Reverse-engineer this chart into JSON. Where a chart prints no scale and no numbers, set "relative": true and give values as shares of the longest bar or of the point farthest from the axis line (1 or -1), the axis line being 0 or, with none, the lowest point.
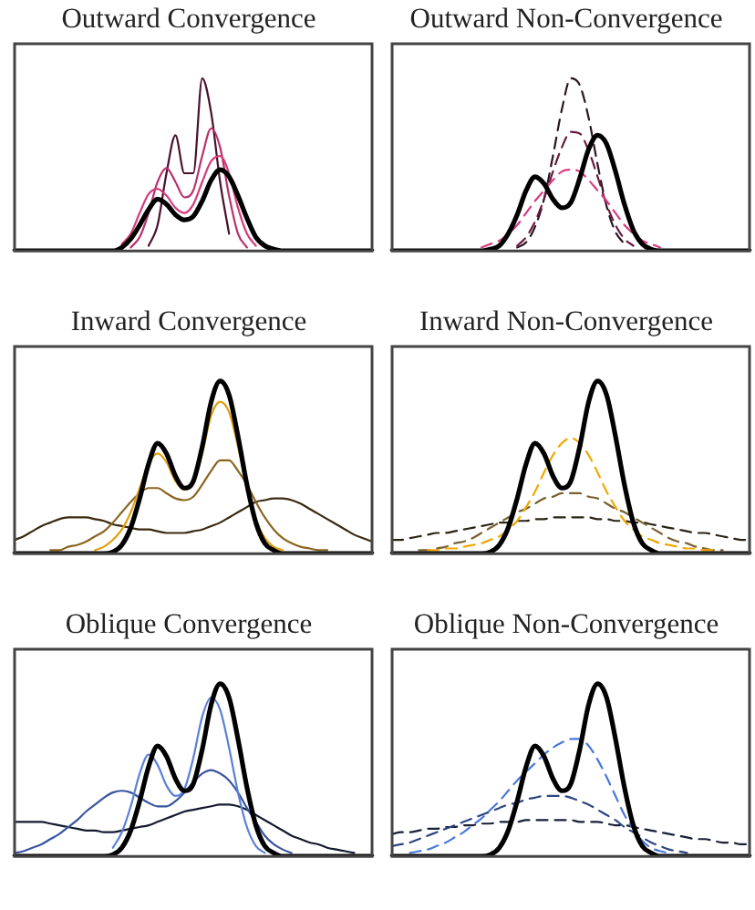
{
  "chart_data": [
    {
      "type": "line",
      "title": "Outward Convergence",
      "relative": true,
      "categories": [
        null,
        null,
        null,
        null,
        null,
        null,
        null,
        null,
        null,
        null,
        null,
        null,
        null,
        null,
        null,
        null,
        null,
        null,
        null,
        null,
        null,
        null,
        null,
        null,
        null,
        null,
        null,
        null,
        null,
        null,
        null,
        null,
        null,
        null,
        null,
        null,
        null,
        null,
        null,
        null,
        null
      ],
      "series": [
        {
          "color": "#000000",
          "values": [
            0,
            0,
            0,
            0,
            0,
            0,
            0,
            0,
            0,
            0,
            0,
            0,
            0.02,
            0.07,
            0.15,
            0.24,
            0.3,
            0.27,
            0.21,
            0.18,
            0.2,
            0.29,
            0.41,
            0.47,
            0.43,
            0.32,
            0.19,
            0.08,
            0.03,
            0.01,
            0,
            0,
            0,
            0,
            0,
            0,
            0,
            0,
            0,
            0,
            0
          ]
        },
        {
          "color": "#4a1030",
          "values": [
            null,
            null,
            null,
            null,
            null,
            null,
            null,
            null,
            null,
            null,
            null,
            null,
            null,
            null,
            null,
            0.03,
            0.15,
            0.45,
            0.67,
            0.45,
            0.45,
            1.0,
            0.8,
            0.4,
            0.1,
            null,
            null,
            null,
            null,
            null,
            null,
            null,
            null,
            null,
            null,
            null,
            null,
            null,
            null,
            null,
            null
          ]
        },
        {
          "color": "#b8306e",
          "values": [
            null,
            null,
            null,
            null,
            null,
            null,
            null,
            null,
            null,
            null,
            null,
            null,
            null,
            0.02,
            0.08,
            0.22,
            0.4,
            0.48,
            0.4,
            0.31,
            0.35,
            0.55,
            0.71,
            0.6,
            0.32,
            0.1,
            0.02,
            null,
            null,
            null,
            null,
            null,
            null,
            null,
            null,
            null,
            null,
            null,
            null,
            null,
            null
          ]
        },
        {
          "color": "#d63a7c",
          "values": [
            null,
            null,
            null,
            null,
            null,
            null,
            null,
            null,
            null,
            null,
            null,
            null,
            0.04,
            0.1,
            0.22,
            0.33,
            0.36,
            0.32,
            0.25,
            0.22,
            0.27,
            0.4,
            0.52,
            0.55,
            0.45,
            0.25,
            0.1,
            0.03,
            null,
            null,
            null,
            null,
            null,
            null,
            null,
            null,
            null,
            null,
            null,
            null,
            null
          ]
        }
      ]
    },
    {
      "type": "line",
      "title": "Outward Non-Convergence",
      "relative": true,
      "categories": [
        null,
        null,
        null,
        null,
        null,
        null,
        null,
        null,
        null,
        null,
        null,
        null,
        null,
        null,
        null,
        null,
        null,
        null,
        null,
        null,
        null,
        null,
        null,
        null,
        null,
        null,
        null,
        null,
        null,
        null,
        null,
        null,
        null,
        null,
        null,
        null,
        null,
        null,
        null,
        null,
        null
      ],
      "series": [
        {
          "color": "#000000",
          "values": [
            0,
            0,
            0,
            0,
            0,
            0,
            0,
            0,
            0,
            0,
            0,
            0.01,
            0.03,
            0.1,
            0.21,
            0.35,
            0.43,
            0.39,
            0.3,
            0.25,
            0.28,
            0.42,
            0.59,
            0.67,
            0.62,
            0.46,
            0.27,
            0.12,
            0.04,
            0.01,
            0,
            0,
            0,
            0,
            0,
            0,
            0,
            0,
            0,
            0,
            0
          ]
        },
        {
          "color": "#2a1520",
          "line_style": "dashed",
          "values": [
            null,
            null,
            null,
            null,
            null,
            null,
            null,
            null,
            null,
            null,
            null,
            null,
            null,
            null,
            0.02,
            0.05,
            0.14,
            0.3,
            0.55,
            0.82,
            1.0,
            0.96,
            0.77,
            0.5,
            0.26,
            0.11,
            0.04,
            null,
            null,
            null,
            null,
            null,
            null,
            null,
            null,
            null,
            null,
            null,
            null,
            null,
            null
          ]
        },
        {
          "color": "#6a1a40",
          "line_style": "dashed",
          "values": [
            null,
            null,
            null,
            null,
            null,
            null,
            null,
            null,
            null,
            null,
            null,
            null,
            null,
            null,
            0.03,
            0.08,
            0.17,
            0.3,
            0.46,
            0.6,
            0.69,
            0.68,
            0.58,
            0.43,
            0.27,
            0.15,
            0.07,
            0.03,
            null,
            null,
            null,
            null,
            null,
            null,
            null,
            null,
            null,
            null,
            null,
            null,
            null
          ]
        },
        {
          "color": "#d83a80",
          "line_style": "dashed",
          "values": [
            null,
            null,
            null,
            null,
            null,
            null,
            null,
            null,
            null,
            null,
            0.02,
            0.04,
            0.06,
            0.1,
            0.15,
            0.22,
            0.29,
            0.35,
            0.41,
            0.46,
            0.47,
            0.46,
            0.41,
            0.35,
            0.29,
            0.22,
            0.15,
            0.1,
            0.06,
            0.04,
            0.02,
            null,
            null,
            null,
            null,
            null,
            null,
            null,
            null,
            null,
            null
          ]
        }
      ]
    },
    {
      "type": "line",
      "title": "Inward Convergence",
      "relative": true,
      "categories": [
        null,
        null,
        null,
        null,
        null,
        null,
        null,
        null,
        null,
        null,
        null,
        null,
        null,
        null,
        null,
        null,
        null,
        null,
        null,
        null,
        null,
        null,
        null,
        null,
        null,
        null,
        null,
        null,
        null,
        null,
        null,
        null,
        null,
        null,
        null,
        null,
        null,
        null,
        null,
        null,
        null
      ],
      "series": [
        {
          "color": "#000000",
          "values": [
            0,
            0,
            0,
            0,
            0,
            0,
            0,
            0,
            0,
            0,
            0,
            0.01,
            0.05,
            0.15,
            0.32,
            0.52,
            0.64,
            0.58,
            0.45,
            0.38,
            0.42,
            0.62,
            0.88,
            1.0,
            0.92,
            0.68,
            0.4,
            0.18,
            0.06,
            0.02,
            0,
            0,
            0,
            0,
            0,
            0,
            0,
            0,
            0,
            0,
            0
          ]
        },
        {
          "color": "#3a2a10",
          "values": [
            0.08,
            0.1,
            0.13,
            0.16,
            0.18,
            0.2,
            0.21,
            0.21,
            0.21,
            0.2,
            0.19,
            0.17,
            0.16,
            0.15,
            0.14,
            0.14,
            0.13,
            0.12,
            0.12,
            0.12,
            0.13,
            0.14,
            0.16,
            0.18,
            0.21,
            0.24,
            0.27,
            0.3,
            0.31,
            0.32,
            0.32,
            0.31,
            0.29,
            0.26,
            0.23,
            0.2,
            0.17,
            0.14,
            0.11,
            0.09,
            0.07
          ]
        },
        {
          "color": "#8a6520",
          "values": [
            null,
            null,
            null,
            null,
            0.02,
            0.02,
            0.04,
            0.05,
            0.07,
            0.1,
            0.13,
            0.18,
            0.24,
            0.3,
            0.35,
            0.38,
            0.38,
            0.35,
            0.32,
            0.31,
            0.33,
            0.4,
            0.48,
            0.54,
            0.54,
            0.48,
            0.4,
            0.3,
            0.21,
            0.14,
            0.09,
            0.06,
            0.04,
            0.03,
            0.02,
            0.02,
            null,
            null,
            null,
            null,
            null
          ]
        },
        {
          "color": "#e0a010",
          "values": [
            null,
            null,
            null,
            null,
            null,
            null,
            null,
            null,
            null,
            0.02,
            0.04,
            0.08,
            0.14,
            0.24,
            0.38,
            0.52,
            0.58,
            0.53,
            0.42,
            0.37,
            0.41,
            0.58,
            0.8,
            0.88,
            0.82,
            0.62,
            0.38,
            0.2,
            0.09,
            0.04,
            0.02,
            null,
            null,
            null,
            null,
            null,
            null,
            null,
            null,
            null,
            null
          ]
        }
      ]
    },
    {
      "type": "line",
      "title": "Inward Non-Convergence",
      "relative": true,
      "categories": [
        null,
        null,
        null,
        null,
        null,
        null,
        null,
        null,
        null,
        null,
        null,
        null,
        null,
        null,
        null,
        null,
        null,
        null,
        null,
        null,
        null,
        null,
        null,
        null,
        null,
        null,
        null,
        null,
        null,
        null,
        null,
        null,
        null,
        null,
        null,
        null,
        null,
        null,
        null,
        null,
        null
      ],
      "series": [
        {
          "color": "#000000",
          "values": [
            0,
            0,
            0,
            0,
            0,
            0,
            0,
            0,
            0,
            0,
            0,
            0.01,
            0.05,
            0.15,
            0.32,
            0.52,
            0.64,
            0.58,
            0.45,
            0.38,
            0.42,
            0.62,
            0.88,
            1.0,
            0.92,
            0.68,
            0.4,
            0.18,
            0.06,
            0.02,
            0,
            0,
            0,
            0,
            0,
            0,
            0,
            0,
            0,
            0,
            0
          ]
        },
        {
          "color": "#2a2415",
          "line_style": "dashed",
          "values": [
            0.08,
            0.08,
            0.09,
            0.1,
            0.11,
            0.12,
            0.12,
            0.13,
            0.14,
            0.15,
            0.16,
            0.17,
            0.18,
            0.18,
            0.19,
            0.19,
            0.2,
            0.2,
            0.21,
            0.21,
            0.21,
            0.21,
            0.21,
            0.2,
            0.2,
            0.19,
            0.19,
            0.18,
            0.18,
            0.17,
            0.16,
            0.15,
            0.14,
            0.13,
            0.12,
            0.12,
            0.11,
            0.1,
            0.09,
            0.08,
            0.08
          ]
        },
        {
          "color": "#7a6030",
          "line_style": "dashed",
          "values": [
            null,
            null,
            null,
            0.02,
            0.02,
            0.03,
            0.04,
            0.06,
            0.07,
            0.09,
            0.12,
            0.15,
            0.18,
            0.21,
            0.24,
            0.26,
            0.29,
            0.32,
            0.33,
            0.35,
            0.35,
            0.35,
            0.33,
            0.32,
            0.29,
            0.26,
            0.24,
            0.21,
            0.18,
            0.15,
            0.12,
            0.09,
            0.07,
            0.06,
            0.04,
            0.03,
            0.02,
            0.02,
            null,
            null,
            null
          ]
        },
        {
          "color": "#f0a800",
          "line_style": "dashed",
          "values": [
            null,
            null,
            null,
            null,
            0.02,
            0.02,
            0.03,
            0.03,
            0.04,
            0.05,
            0.06,
            0.08,
            0.1,
            0.14,
            0.19,
            0.27,
            0.36,
            0.47,
            0.57,
            0.64,
            0.67,
            0.64,
            0.57,
            0.47,
            0.36,
            0.27,
            0.19,
            0.14,
            0.1,
            0.08,
            0.06,
            0.05,
            0.04,
            0.03,
            0.03,
            0.02,
            0.02,
            null,
            null,
            null,
            null
          ]
        }
      ]
    },
    {
      "type": "line",
      "title": "Oblique Convergence",
      "relative": true,
      "categories": [
        null,
        null,
        null,
        null,
        null,
        null,
        null,
        null,
        null,
        null,
        null,
        null,
        null,
        null,
        null,
        null,
        null,
        null,
        null,
        null,
        null,
        null,
        null,
        null,
        null,
        null,
        null,
        null,
        null,
        null,
        null,
        null,
        null,
        null,
        null,
        null,
        null,
        null,
        null,
        null,
        null
      ],
      "series": [
        {
          "color": "#000000",
          "values": [
            0,
            0,
            0,
            0,
            0,
            0,
            0,
            0,
            0,
            0,
            0,
            0.01,
            0.05,
            0.15,
            0.32,
            0.52,
            0.64,
            0.58,
            0.45,
            0.38,
            0.42,
            0.62,
            0.88,
            1.0,
            0.92,
            0.68,
            0.4,
            0.18,
            0.06,
            0.02,
            0,
            0,
            0,
            0,
            0,
            0,
            0,
            0,
            0,
            0,
            0
          ]
        },
        {
          "color": "#151a30",
          "values": [
            0.2,
            0.2,
            0.2,
            0.2,
            0.19,
            0.18,
            0.17,
            0.16,
            0.15,
            0.15,
            0.14,
            0.14,
            0.15,
            0.16,
            0.17,
            0.18,
            0.2,
            0.22,
            0.24,
            0.26,
            0.27,
            0.28,
            0.29,
            0.3,
            0.3,
            0.29,
            0.27,
            0.24,
            0.21,
            0.18,
            0.15,
            0.12,
            0.1,
            0.08,
            0.07,
            0.05,
            0.04,
            0.03,
            0.02,
            null,
            null
          ]
        },
        {
          "color": "#3a55a0",
          "values": [
            0.02,
            0.03,
            0.05,
            0.07,
            0.1,
            0.13,
            0.17,
            0.21,
            0.26,
            0.3,
            0.34,
            0.37,
            0.38,
            0.37,
            0.34,
            0.31,
            0.29,
            0.29,
            0.32,
            0.37,
            0.43,
            0.48,
            0.5,
            0.48,
            0.44,
            0.37,
            0.28,
            0.2,
            0.12,
            0.07,
            0.04,
            0.02,
            null,
            null,
            null,
            null,
            null,
            null,
            null,
            null,
            null
          ]
        },
        {
          "color": "#5a80d8",
          "values": [
            null,
            null,
            null,
            null,
            null,
            null,
            null,
            null,
            null,
            null,
            null,
            0.05,
            0.14,
            0.29,
            0.48,
            0.59,
            0.53,
            0.41,
            0.35,
            0.39,
            0.57,
            0.81,
            0.92,
            0.85,
            0.63,
            0.37,
            0.17,
            0.06,
            0.02,
            null,
            null,
            null,
            null,
            null,
            null,
            null,
            null,
            null,
            null,
            null,
            null
          ]
        }
      ]
    },
    {
      "type": "line",
      "title": "Oblique Non-Convergence",
      "relative": true,
      "categories": [
        null,
        null,
        null,
        null,
        null,
        null,
        null,
        null,
        null,
        null,
        null,
        null,
        null,
        null,
        null,
        null,
        null,
        null,
        null,
        null,
        null,
        null,
        null,
        null,
        null,
        null,
        null,
        null,
        null,
        null,
        null,
        null,
        null,
        null,
        null,
        null,
        null,
        null,
        null,
        null,
        null
      ],
      "series": [
        {
          "color": "#000000",
          "values": [
            0,
            0,
            0,
            0,
            0,
            0,
            0,
            0,
            0,
            0,
            0,
            0.01,
            0.05,
            0.15,
            0.32,
            0.52,
            0.64,
            0.58,
            0.45,
            0.38,
            0.42,
            0.62,
            0.88,
            1.0,
            0.92,
            0.68,
            0.4,
            0.18,
            0.06,
            0.02,
            0,
            0,
            0,
            0,
            0,
            0,
            0,
            0,
            0,
            0,
            0
          ]
        },
        {
          "color": "#1a2038",
          "line_style": "dashed",
          "values": [
            0.13,
            0.14,
            0.14,
            0.15,
            0.16,
            0.16,
            0.17,
            0.17,
            0.18,
            0.18,
            0.19,
            0.19,
            0.2,
            0.2,
            0.2,
            0.21,
            0.21,
            0.21,
            0.21,
            0.21,
            0.21,
            0.2,
            0.2,
            0.2,
            0.19,
            0.18,
            0.18,
            0.17,
            0.16,
            0.15,
            0.14,
            0.13,
            0.12,
            0.11,
            0.1,
            0.1,
            0.09,
            0.08,
            0.08,
            0.07,
            0.07
          ]
        },
        {
          "color": "#2c4680",
          "line_style": "dashed",
          "values": [
            0.06,
            0.07,
            0.08,
            0.1,
            0.12,
            0.14,
            0.16,
            0.18,
            0.2,
            0.22,
            0.24,
            0.26,
            0.28,
            0.3,
            0.31,
            0.33,
            0.34,
            0.35,
            0.35,
            0.35,
            0.34,
            0.32,
            0.3,
            0.27,
            0.24,
            0.21,
            0.17,
            0.14,
            0.11,
            0.08,
            0.06,
            0.04,
            0.03,
            0.02,
            null,
            null,
            null,
            null,
            null,
            null,
            null
          ]
        },
        {
          "color": "#4a78d8",
          "line_style": "dashed",
          "values": [
            null,
            null,
            0.02,
            0.03,
            0.04,
            0.06,
            0.08,
            0.11,
            0.14,
            0.18,
            0.22,
            0.27,
            0.32,
            0.38,
            0.44,
            0.49,
            0.54,
            0.59,
            0.63,
            0.66,
            0.68,
            0.68,
            0.64,
            0.56,
            0.46,
            0.35,
            0.24,
            0.16,
            0.09,
            0.05,
            0.03,
            0.02,
            null,
            null,
            null,
            null,
            null,
            null,
            null,
            null,
            null
          ]
        }
      ]
    }
  ]
}
